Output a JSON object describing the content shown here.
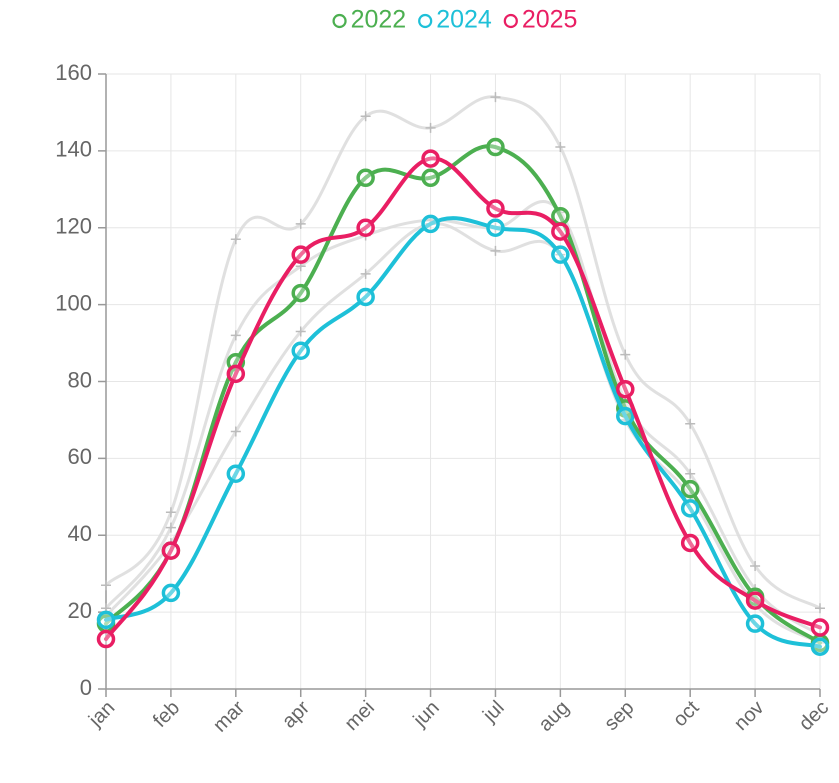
{
  "chart_data": {
    "type": "line",
    "categories": [
      "jan",
      "feb",
      "mar",
      "apr",
      "mei",
      "jun",
      "jul",
      "aug",
      "sep",
      "oct",
      "nov",
      "dec"
    ],
    "series": [
      {
        "color": "#dddddd",
        "values": [
          27,
          46,
          117,
          121,
          149,
          146,
          154,
          141,
          87,
          69,
          32,
          21
        ]
      },
      {
        "color": "#dddddd",
        "values": [
          21,
          42,
          92,
          110,
          118,
          122,
          120,
          124,
          75,
          56,
          26,
          14
        ]
      },
      {
        "color": "#dddddd",
        "values": [
          19,
          38,
          67,
          93,
          108,
          121,
          114,
          113,
          70,
          50,
          22,
          12
        ]
      },
      {
        "name": "2022",
        "color": "#4caf50",
        "values": [
          17,
          36,
          85,
          103,
          133,
          133,
          141,
          123,
          73,
          52,
          24,
          12
        ]
      },
      {
        "name": "2024",
        "color": "#1ec0d8",
        "values": [
          18,
          25,
          56,
          88,
          102,
          121,
          120,
          113,
          71,
          47,
          17,
          11
        ]
      },
      {
        "name": "2025",
        "color": "#e91e63",
        "values": [
          13,
          36,
          82,
          113,
          120,
          138,
          125,
          119,
          78,
          38,
          23,
          16
        ]
      }
    ],
    "ylim": [
      0,
      160
    ],
    "yticks": [
      0,
      20,
      40,
      60,
      80,
      100,
      120,
      140,
      160
    ],
    "grid": true
  }
}
